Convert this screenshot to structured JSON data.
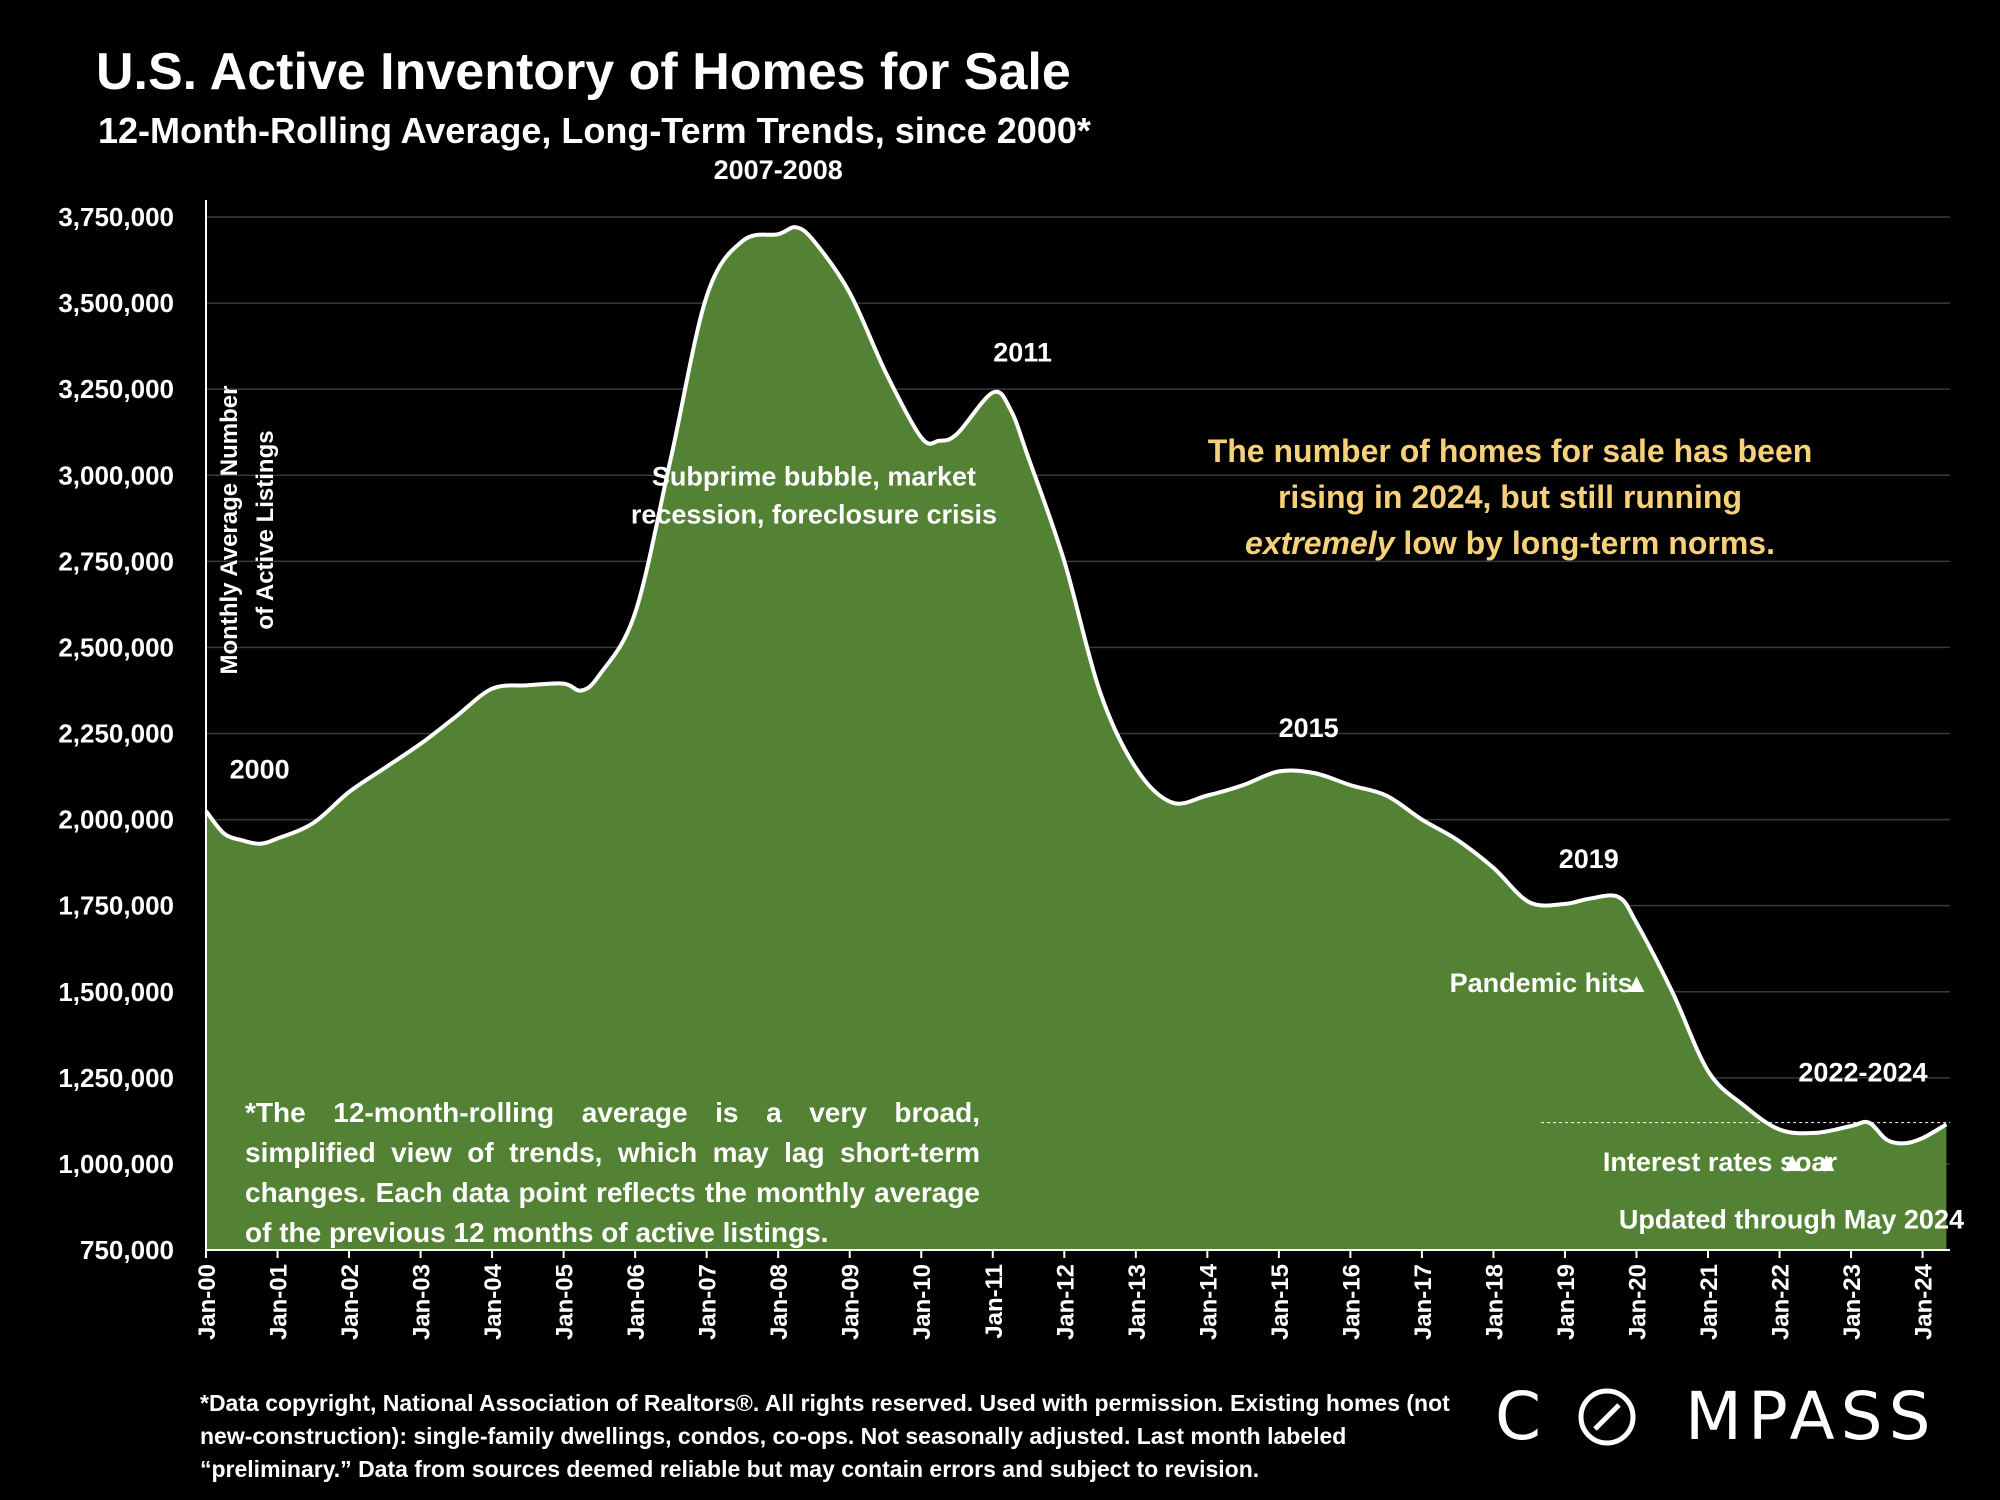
{
  "title": "U.S. Active Inventory of Homes for Sale",
  "subtitle": "12-Month-Rolling Average, Long-Term Trends, since 2000*",
  "callout": {
    "line1": "The number of homes for sale has been",
    "line2": "rising in 2024, but still running",
    "line3_em": "extremely",
    "line3_rest": " low by long-term norms."
  },
  "footnote": "*The 12-month-rolling average is a very broad, simplified view of trends, which may lag short-term changes. Each data point reflects the monthly average of the previous 12 months of active listings.",
  "source_note": "*Data copyright, National Association of Realtors®. All rights reserved. Used with permission. Existing homes (not new-construction): single-family dwellings, condos, co-ops. Not seasonally adjusted. Last month labeled “preliminary.” Data from sources deemed reliable but may contain errors and subject to revision.",
  "logo": {
    "left": "C",
    "right": "MPASS"
  },
  "colors": {
    "area": "#548235",
    "line": "#ffffff",
    "callout": "#f7d07a",
    "grid": "#3a3a3a",
    "background": "#000000"
  },
  "chart_data": {
    "type": "area",
    "ylabel": [
      "Monthly Average Number",
      "of Active Listings"
    ],
    "xlabel": "",
    "ylim": [
      750000,
      3750000
    ],
    "yticks": [
      750000,
      1000000,
      1250000,
      1500000,
      1750000,
      2000000,
      2250000,
      2500000,
      2750000,
      3000000,
      3250000,
      3500000,
      3750000
    ],
    "ytick_labels": [
      "750,000",
      "1,000,000",
      "1,250,000",
      "1,500,000",
      "1,750,000",
      "2,000,000",
      "2,250,000",
      "2,500,000",
      "2,750,000",
      "3,000,000",
      "3,250,000",
      "3,500,000",
      "3,750,000"
    ],
    "xticks": [
      "Jan-00",
      "Jan-01",
      "Jan-02",
      "Jan-03",
      "Jan-04",
      "Jan-05",
      "Jan-06",
      "Jan-07",
      "Jan-08",
      "Jan-09",
      "Jan-10",
      "Jan-11",
      "Jan-12",
      "Jan-13",
      "Jan-14",
      "Jan-15",
      "Jan-16",
      "Jan-17",
      "Jan-18",
      "Jan-19",
      "Jan-20",
      "Jan-21",
      "Jan-22",
      "Jan-23",
      "Jan-24"
    ],
    "grid": true,
    "series": [
      {
        "x": [
          "2000-01",
          "2000-04",
          "2000-07",
          "2000-10",
          "2001-01",
          "2001-07",
          "2002-01",
          "2002-07",
          "2003-01",
          "2003-07",
          "2004-01",
          "2004-07",
          "2005-01",
          "2005-04",
          "2005-07",
          "2006-01",
          "2006-07",
          "2007-01",
          "2007-07",
          "2008-01",
          "2008-04",
          "2008-07",
          "2009-01",
          "2009-07",
          "2010-01",
          "2010-04",
          "2010-07",
          "2011-01",
          "2011-04",
          "2011-07",
          "2012-01",
          "2012-07",
          "2013-01",
          "2013-07",
          "2014-01",
          "2014-07",
          "2015-01",
          "2015-07",
          "2016-01",
          "2016-07",
          "2017-01",
          "2017-07",
          "2018-01",
          "2018-07",
          "2019-01",
          "2019-05",
          "2019-10",
          "2020-01",
          "2020-07",
          "2021-01",
          "2021-07",
          "2022-01",
          "2022-07",
          "2023-01",
          "2023-04",
          "2023-07",
          "2023-10",
          "2024-01",
          "2024-05"
        ],
        "values": [
          2025000,
          1960000,
          1940000,
          1930000,
          1945000,
          1990000,
          2080000,
          2150000,
          2220000,
          2300000,
          2380000,
          2390000,
          2395000,
          2375000,
          2420000,
          2600000,
          3050000,
          3520000,
          3680000,
          3700000,
          3720000,
          3680000,
          3530000,
          3300000,
          3110000,
          3100000,
          3120000,
          3240000,
          3190000,
          3050000,
          2750000,
          2370000,
          2150000,
          2050000,
          2070000,
          2100000,
          2140000,
          2135000,
          2100000,
          2070000,
          2000000,
          1940000,
          1860000,
          1760000,
          1755000,
          1770000,
          1775000,
          1700000,
          1500000,
          1270000,
          1170000,
          1100000,
          1090000,
          1110000,
          1120000,
          1070000,
          1060000,
          1075000,
          1115000
        ]
      }
    ],
    "reference_line": 1120000,
    "annotations": [
      {
        "text": "2000",
        "x": "2000-10",
        "y": 2120000
      },
      {
        "text": "2007-2008",
        "x": "2008-01",
        "y": 3860000
      },
      {
        "text": "2011",
        "x": "2011-06",
        "y": 3330000
      },
      {
        "text": "Subprime bubble, market",
        "x": "2008-07",
        "y": 2970000
      },
      {
        "text": "recession, foreclosure crisis",
        "x": "2008-07",
        "y": 2860000
      },
      {
        "text": "2015",
        "x": "2015-06",
        "y": 2240000
      },
      {
        "text": "2019",
        "x": "2019-05",
        "y": 1860000
      },
      {
        "text": "Pandemic  hits",
        "x": "2018-09",
        "y": 1500000
      },
      {
        "text": "▲",
        "x": "2020-01",
        "y": 1500000
      },
      {
        "text": "2022-2024",
        "x": "2023-03",
        "y": 1240000
      },
      {
        "text": "Interest rates soar",
        "x": "2021-03",
        "y": 980000
      },
      {
        "text": "▲ ▲",
        "x": "2022-06",
        "y": 980000
      },
      {
        "text": "Updated through May 2024",
        "x": "2022-03",
        "y": 812000
      }
    ]
  }
}
